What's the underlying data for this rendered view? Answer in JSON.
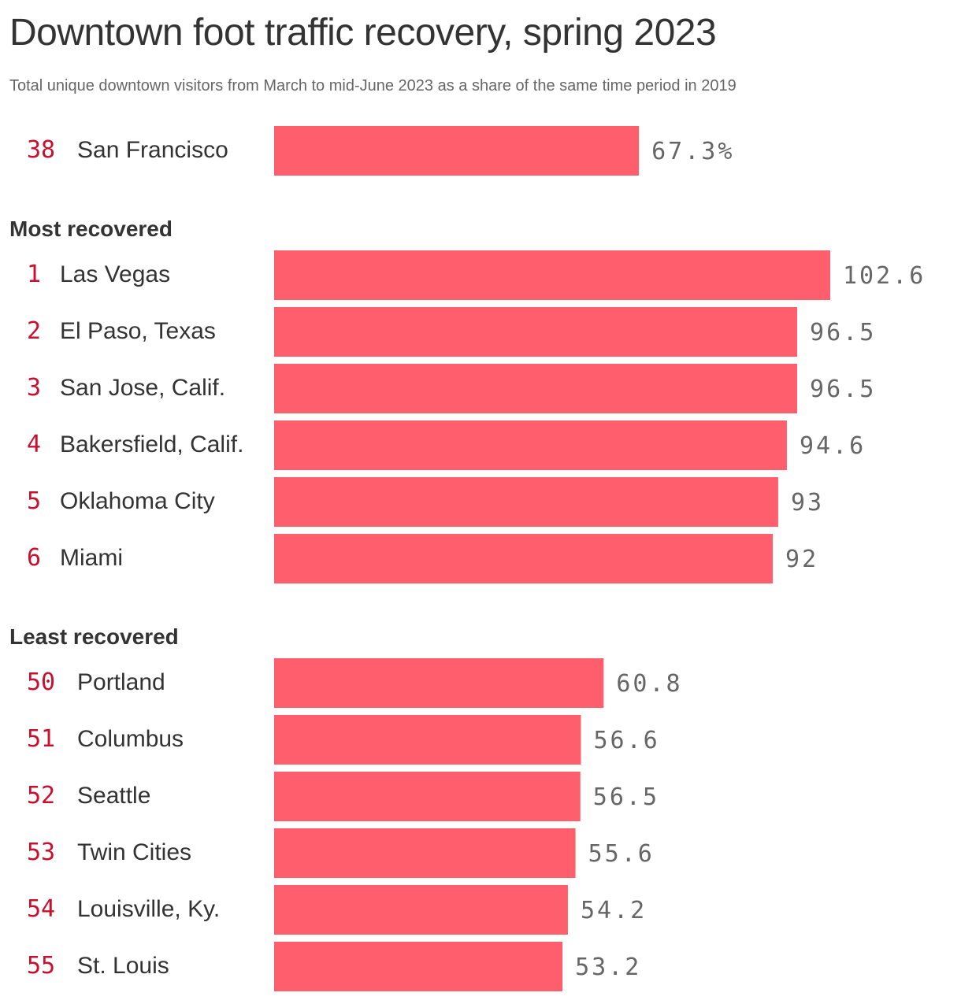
{
  "title": "Downtown foot traffic recovery, spring 2023",
  "subtitle": "Total unique downtown visitors from March to mid-June 2023 as a share of the same time period in 2019",
  "colors": {
    "bar": "#ff5f6d",
    "rank": "#c8102e",
    "label": "#333333",
    "value": "#666666",
    "heading": "#333333"
  },
  "chart_data": {
    "type": "bar",
    "orientation": "horizontal",
    "groups": [
      {
        "heading": "",
        "rows": [
          {
            "rank": "38",
            "city": "San Francisco",
            "value": 67.3,
            "label": "67.3%"
          }
        ]
      },
      {
        "heading": "Most recovered",
        "rows": [
          {
            "rank": "1",
            "city": "Las Vegas",
            "value": 102.6,
            "label": "102.6"
          },
          {
            "rank": "2",
            "city": "El Paso, Texas",
            "value": 96.5,
            "label": "96.5"
          },
          {
            "rank": "3",
            "city": "San Jose, Calif.",
            "value": 96.5,
            "label": "96.5"
          },
          {
            "rank": "4",
            "city": "Bakersfield, Calif.",
            "value": 94.6,
            "label": "94.6"
          },
          {
            "rank": "5",
            "city": "Oklahoma City",
            "value": 93,
            "label": "93"
          },
          {
            "rank": "6",
            "city": "Miami",
            "value": 92,
            "label": "92"
          }
        ]
      },
      {
        "heading": "Least recovered",
        "rows": [
          {
            "rank": "50",
            "city": "Portland",
            "value": 60.8,
            "label": "60.8"
          },
          {
            "rank": "51",
            "city": "Columbus",
            "value": 56.6,
            "label": "56.6"
          },
          {
            "rank": "52",
            "city": "Seattle",
            "value": 56.5,
            "label": "56.5"
          },
          {
            "rank": "53",
            "city": "Twin Cities",
            "value": 55.6,
            "label": "55.6"
          },
          {
            "rank": "54",
            "city": "Louisville, Ky.",
            "value": 54.2,
            "label": "54.2"
          },
          {
            "rank": "55",
            "city": "St. Louis",
            "value": 53.2,
            "label": "53.2"
          }
        ]
      }
    ],
    "xlim": [
      0,
      102.6
    ]
  }
}
